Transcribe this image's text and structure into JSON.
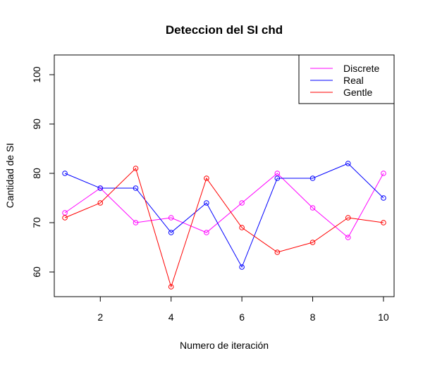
{
  "chart_data": {
    "type": "line",
    "title": "Deteccion del SI chd",
    "xlabel": "Numero de iteración",
    "ylabel": "Cantidad de SI",
    "x": [
      1,
      2,
      3,
      4,
      5,
      6,
      7,
      8,
      9,
      10
    ],
    "xlim": [
      0.7,
      10.3
    ],
    "ylim": [
      55,
      104
    ],
    "x_ticks": [
      "2",
      "4",
      "6",
      "8",
      "10"
    ],
    "y_ticks": [
      "60",
      "70",
      "80",
      "90",
      "100"
    ],
    "grid": false,
    "legend_position": "top-right",
    "series": [
      {
        "name": "Discrete",
        "color": "#FF00FF",
        "values": [
          72,
          77,
          70,
          71,
          68,
          74,
          80,
          73,
          67,
          80
        ]
      },
      {
        "name": "Real",
        "color": "#0000FF",
        "values": [
          80,
          77,
          77,
          68,
          74,
          61,
          79,
          79,
          82,
          75
        ]
      },
      {
        "name": "Gentle",
        "color": "#FF0000",
        "values": [
          71,
          74,
          81,
          57,
          79,
          69,
          64,
          66,
          71,
          70
        ]
      }
    ]
  }
}
